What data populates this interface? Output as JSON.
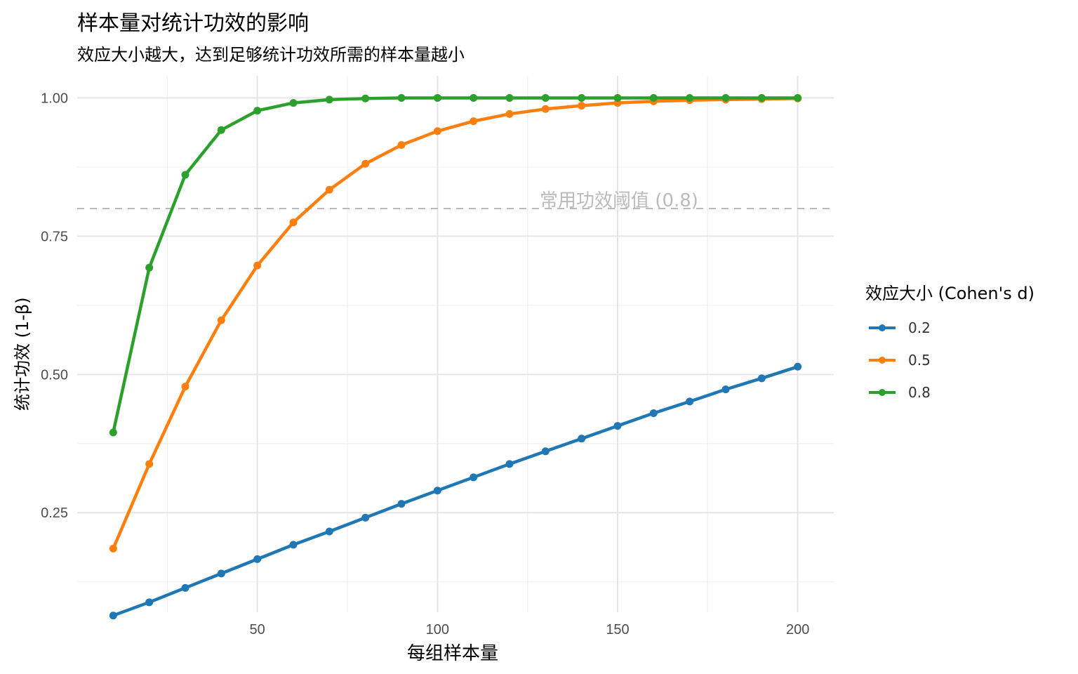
{
  "chart_data": {
    "type": "line",
    "title": "样本量对统计功效的影响",
    "subtitle": "效应大小越大，达到足够统计功效所需的样本量越小",
    "xlabel": "每组样本量",
    "ylabel": "统计功效 (1-β)",
    "x": [
      10,
      20,
      30,
      40,
      50,
      60,
      70,
      80,
      90,
      100,
      110,
      120,
      130,
      140,
      150,
      160,
      170,
      180,
      190,
      200
    ],
    "xlim": [
      0,
      210
    ],
    "ylim": [
      0.07,
      1.04
    ],
    "x_ticks": [
      "50",
      "100",
      "150",
      "200"
    ],
    "y_ticks": [
      "0.25",
      "0.50",
      "0.75",
      "1.00"
    ],
    "grid": true,
    "legend_title": "效应大小 (Cohen's d)",
    "legend_position": "right",
    "series": [
      {
        "name": "0.2",
        "color": "#1f77b4",
        "values": [
          0.064,
          0.088,
          0.114,
          0.14,
          0.166,
          0.192,
          0.216,
          0.241,
          0.266,
          0.29,
          0.314,
          0.338,
          0.361,
          0.384,
          0.407,
          0.43,
          0.451,
          0.473,
          0.493,
          0.514
        ]
      },
      {
        "name": "0.5",
        "color": "#ff7f0e",
        "values": [
          0.185,
          0.338,
          0.478,
          0.598,
          0.697,
          0.775,
          0.834,
          0.881,
          0.915,
          0.94,
          0.958,
          0.971,
          0.98,
          0.986,
          0.991,
          0.994,
          0.996,
          0.997,
          0.998,
          0.999
        ]
      },
      {
        "name": "0.8",
        "color": "#2ca02c",
        "values": [
          0.395,
          0.693,
          0.861,
          0.942,
          0.977,
          0.991,
          0.997,
          0.999,
          1.0,
          1.0,
          1.0,
          1.0,
          1.0,
          1.0,
          1.0,
          1.0,
          1.0,
          1.0,
          1.0,
          1.0
        ]
      }
    ],
    "reference_line": {
      "y": 0.8,
      "label": "常用功效阈值 (0.8)",
      "color": "#bbbbbb",
      "style": "dashed"
    }
  }
}
